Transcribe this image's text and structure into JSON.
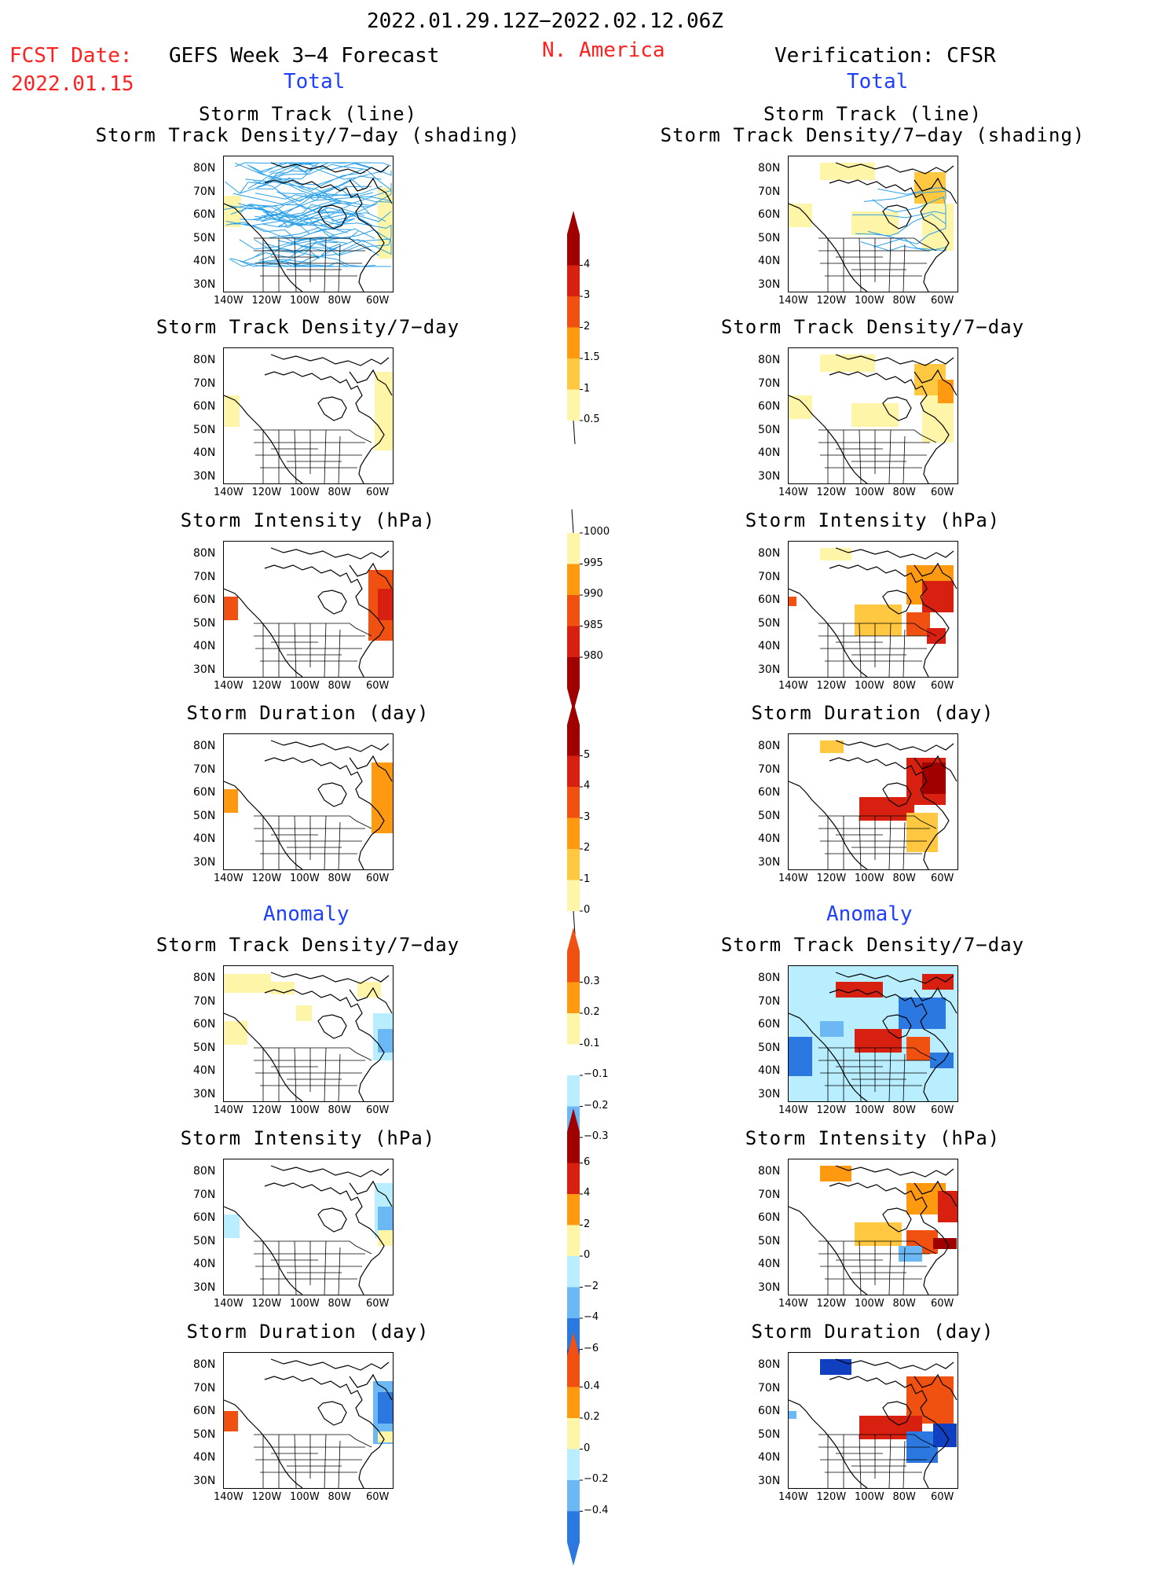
{
  "header": {
    "date_range": "2022.01.29.12Z−2022.02.12.06Z",
    "region": "N. America",
    "fcst_date_label": "FCST Date:",
    "fcst_date_value": "2022.01.15",
    "left_title": "GEFS Week 3−4 Forecast",
    "right_title": "Verification: CFSR",
    "left_total": "Total",
    "right_total": "Total",
    "left_anomaly": "Anomaly",
    "right_anomaly": "Anomaly"
  },
  "panels": {
    "r1_line1": "Storm Track (line)",
    "r1_line2": "Storm Track Density/7−day (shading)",
    "density": "Storm Track Density/7−day",
    "intensity": "Storm Intensity (hPa)",
    "duration": "Storm Duration (day)"
  },
  "axes": {
    "lat_labels": [
      "80N",
      "70N",
      "60N",
      "50N",
      "40N",
      "30N"
    ],
    "lon_labels": [
      "140W",
      "120W",
      "100W",
      "80W",
      "60W"
    ]
  },
  "colorbars": {
    "density_total": [
      "4",
      "3",
      "2",
      "1.5",
      "1",
      "0.5"
    ],
    "intensity_total": [
      "1000",
      "995",
      "990",
      "985",
      "980"
    ],
    "duration_total": [
      "5",
      "4",
      "3",
      "2",
      "1",
      "0"
    ],
    "density_anom": [
      "0.3",
      "0.2",
      "0.1",
      "−0.1",
      "−0.2",
      "−0.3"
    ],
    "intensity_anom": [
      "6",
      "4",
      "2",
      "0",
      "−2",
      "−4",
      "−6"
    ],
    "duration_anom": [
      "0.4",
      "0.2",
      "0",
      "−0.2",
      "−0.4"
    ]
  },
  "colors": {
    "red_text": "#ff2020",
    "blue_text": "#1f3fff",
    "track_line": "#2aa0e8",
    "pale_yellow": "#fff5a8",
    "light_orange": "#ffc840",
    "orange": "#ff9a10",
    "red_orange": "#f05010",
    "red": "#d82010",
    "dark_red": "#a00000",
    "light_blue": "#b8eeff",
    "mid_blue": "#6cb8f4",
    "blue": "#2a78e0",
    "dark_blue": "#1040c0"
  }
}
